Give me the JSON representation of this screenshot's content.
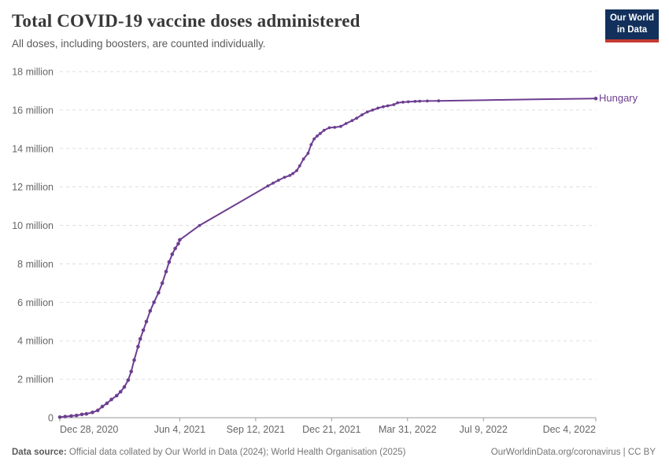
{
  "header": {
    "title": "Total COVID-19 vaccine doses administered",
    "subtitle": "All doses, including boosters, are counted individually.",
    "logo": {
      "line1": "Our World",
      "line2": "in Data",
      "bg_color": "#12305b",
      "accent_color": "#c53a32"
    }
  },
  "chart_data": {
    "type": "line",
    "title": "Total COVID-19 vaccine doses administered",
    "legend_position": "end-of-line-label",
    "grid": "horizontal-dashed",
    "colors": {
      "line": "#6d3e91",
      "grid": "#dddddd",
      "axis": "#999999",
      "tick_text": "#666666"
    },
    "x_axis": {
      "start_date": "2020-12-28",
      "end_date": "2022-12-04",
      "ticks": [
        {
          "date": "2020-12-28",
          "label": "Dec 28, 2020"
        },
        {
          "date": "2021-06-04",
          "label": "Jun 4, 2021"
        },
        {
          "date": "2021-09-12",
          "label": "Sep 12, 2021"
        },
        {
          "date": "2021-12-21",
          "label": "Dec 21, 2021"
        },
        {
          "date": "2022-03-31",
          "label": "Mar 31, 2022"
        },
        {
          "date": "2022-07-09",
          "label": "Jul 9, 2022"
        },
        {
          "date": "2022-12-04",
          "label": "Dec 4, 2022"
        }
      ]
    },
    "y_axis": {
      "max": 18,
      "unit": "million",
      "ticks": [
        {
          "value": 0,
          "label": "0"
        },
        {
          "value": 2,
          "label": "2 million"
        },
        {
          "value": 4,
          "label": "4 million"
        },
        {
          "value": 6,
          "label": "6 million"
        },
        {
          "value": 8,
          "label": "8 million"
        },
        {
          "value": 10,
          "label": "10 million"
        },
        {
          "value": 12,
          "label": "12 million"
        },
        {
          "value": 14,
          "label": "14 million"
        },
        {
          "value": 16,
          "label": "16 million"
        },
        {
          "value": 18,
          "label": "18 million"
        }
      ]
    },
    "series": [
      {
        "name": "Hungary",
        "color": "#6d3e91",
        "unit": "million doses",
        "points": [
          [
            "2020-12-28",
            0.03,
            2
          ],
          [
            "2021-01-04",
            0.06,
            2
          ],
          [
            "2021-01-12",
            0.09,
            2
          ],
          [
            "2021-01-19",
            0.12,
            2
          ],
          [
            "2021-01-26",
            0.17,
            2
          ],
          [
            "2021-02-01",
            0.2,
            2
          ],
          [
            "2021-02-09",
            0.28,
            2
          ],
          [
            "2021-02-16",
            0.38,
            2
          ],
          [
            "2021-02-22",
            0.58,
            2
          ],
          [
            "2021-02-28",
            0.75,
            2
          ],
          [
            "2021-03-06",
            0.95,
            2
          ],
          [
            "2021-03-13",
            1.15,
            2
          ],
          [
            "2021-03-18",
            1.35,
            2
          ],
          [
            "2021-03-23",
            1.6,
            2
          ],
          [
            "2021-03-28",
            1.95,
            2
          ],
          [
            "2021-04-01",
            2.4,
            2
          ],
          [
            "2021-04-05",
            3.0,
            2
          ],
          [
            "2021-04-10",
            3.7,
            2
          ],
          [
            "2021-04-13",
            4.1,
            2
          ],
          [
            "2021-04-17",
            4.55,
            2
          ],
          [
            "2021-04-21",
            5.0,
            2
          ],
          [
            "2021-04-26",
            5.55,
            2
          ],
          [
            "2021-05-01",
            6.0,
            2
          ],
          [
            "2021-05-07",
            6.5,
            2
          ],
          [
            "2021-05-12",
            7.0,
            2
          ],
          [
            "2021-05-17",
            7.6,
            2
          ],
          [
            "2021-05-21",
            8.1,
            2
          ],
          [
            "2021-05-25",
            8.5,
            2
          ],
          [
            "2021-05-29",
            8.8,
            2
          ],
          [
            "2021-06-02",
            9.05,
            2
          ],
          [
            "2021-06-04",
            9.25,
            2
          ],
          [
            "2021-06-30",
            10.0,
            1
          ],
          [
            "2021-09-28",
            12.05,
            1
          ],
          [
            "2021-10-05",
            12.2,
            1
          ],
          [
            "2021-10-12",
            12.35,
            1
          ],
          [
            "2021-10-20",
            12.5,
            1
          ],
          [
            "2021-10-27",
            12.6,
            1
          ],
          [
            "2021-10-31",
            12.7,
            1
          ],
          [
            "2021-11-05",
            12.85,
            1
          ],
          [
            "2021-11-09",
            13.1,
            1
          ],
          [
            "2021-11-14",
            13.45,
            1
          ],
          [
            "2021-11-20",
            13.75,
            1
          ],
          [
            "2021-11-24",
            14.2,
            1
          ],
          [
            "2021-11-28",
            14.5,
            1
          ],
          [
            "2021-12-02",
            14.65,
            1
          ],
          [
            "2021-12-06",
            14.78,
            1
          ],
          [
            "2021-12-11",
            14.95,
            1
          ],
          [
            "2021-12-18",
            15.08,
            1
          ],
          [
            "2021-12-25",
            15.1,
            1
          ],
          [
            "2022-01-02",
            15.15,
            1
          ],
          [
            "2022-01-09",
            15.3,
            1
          ],
          [
            "2022-01-17",
            15.45,
            1
          ],
          [
            "2022-01-23",
            15.58,
            1
          ],
          [
            "2022-01-30",
            15.75,
            1
          ],
          [
            "2022-02-06",
            15.9,
            1
          ],
          [
            "2022-02-13",
            16.0,
            1
          ],
          [
            "2022-02-20",
            16.1,
            1
          ],
          [
            "2022-02-27",
            16.17,
            1
          ],
          [
            "2022-03-05",
            16.22,
            1
          ],
          [
            "2022-03-13",
            16.28,
            1
          ],
          [
            "2022-03-18",
            16.38,
            1
          ],
          [
            "2022-03-25",
            16.41,
            1
          ],
          [
            "2022-04-01",
            16.43,
            1
          ],
          [
            "2022-04-10",
            16.45,
            1
          ],
          [
            "2022-04-16",
            16.46,
            1
          ],
          [
            "2022-04-26",
            16.47,
            1
          ],
          [
            "2022-05-11",
            16.48,
            1
          ],
          [
            "2022-07-15",
            16.52,
            0
          ],
          [
            "2022-09-15",
            16.56,
            0
          ],
          [
            "2022-10-27",
            16.58,
            0
          ],
          [
            "2022-12-04",
            16.6,
            2
          ]
        ]
      }
    ]
  },
  "footer": {
    "source_label": "Data source:",
    "source_text": " Official data collated by Our World in Data (2024); World Health Organisation (2025)",
    "link_text": "OurWorldinData.org/coronavirus",
    "divider": " | ",
    "license": "CC BY"
  }
}
